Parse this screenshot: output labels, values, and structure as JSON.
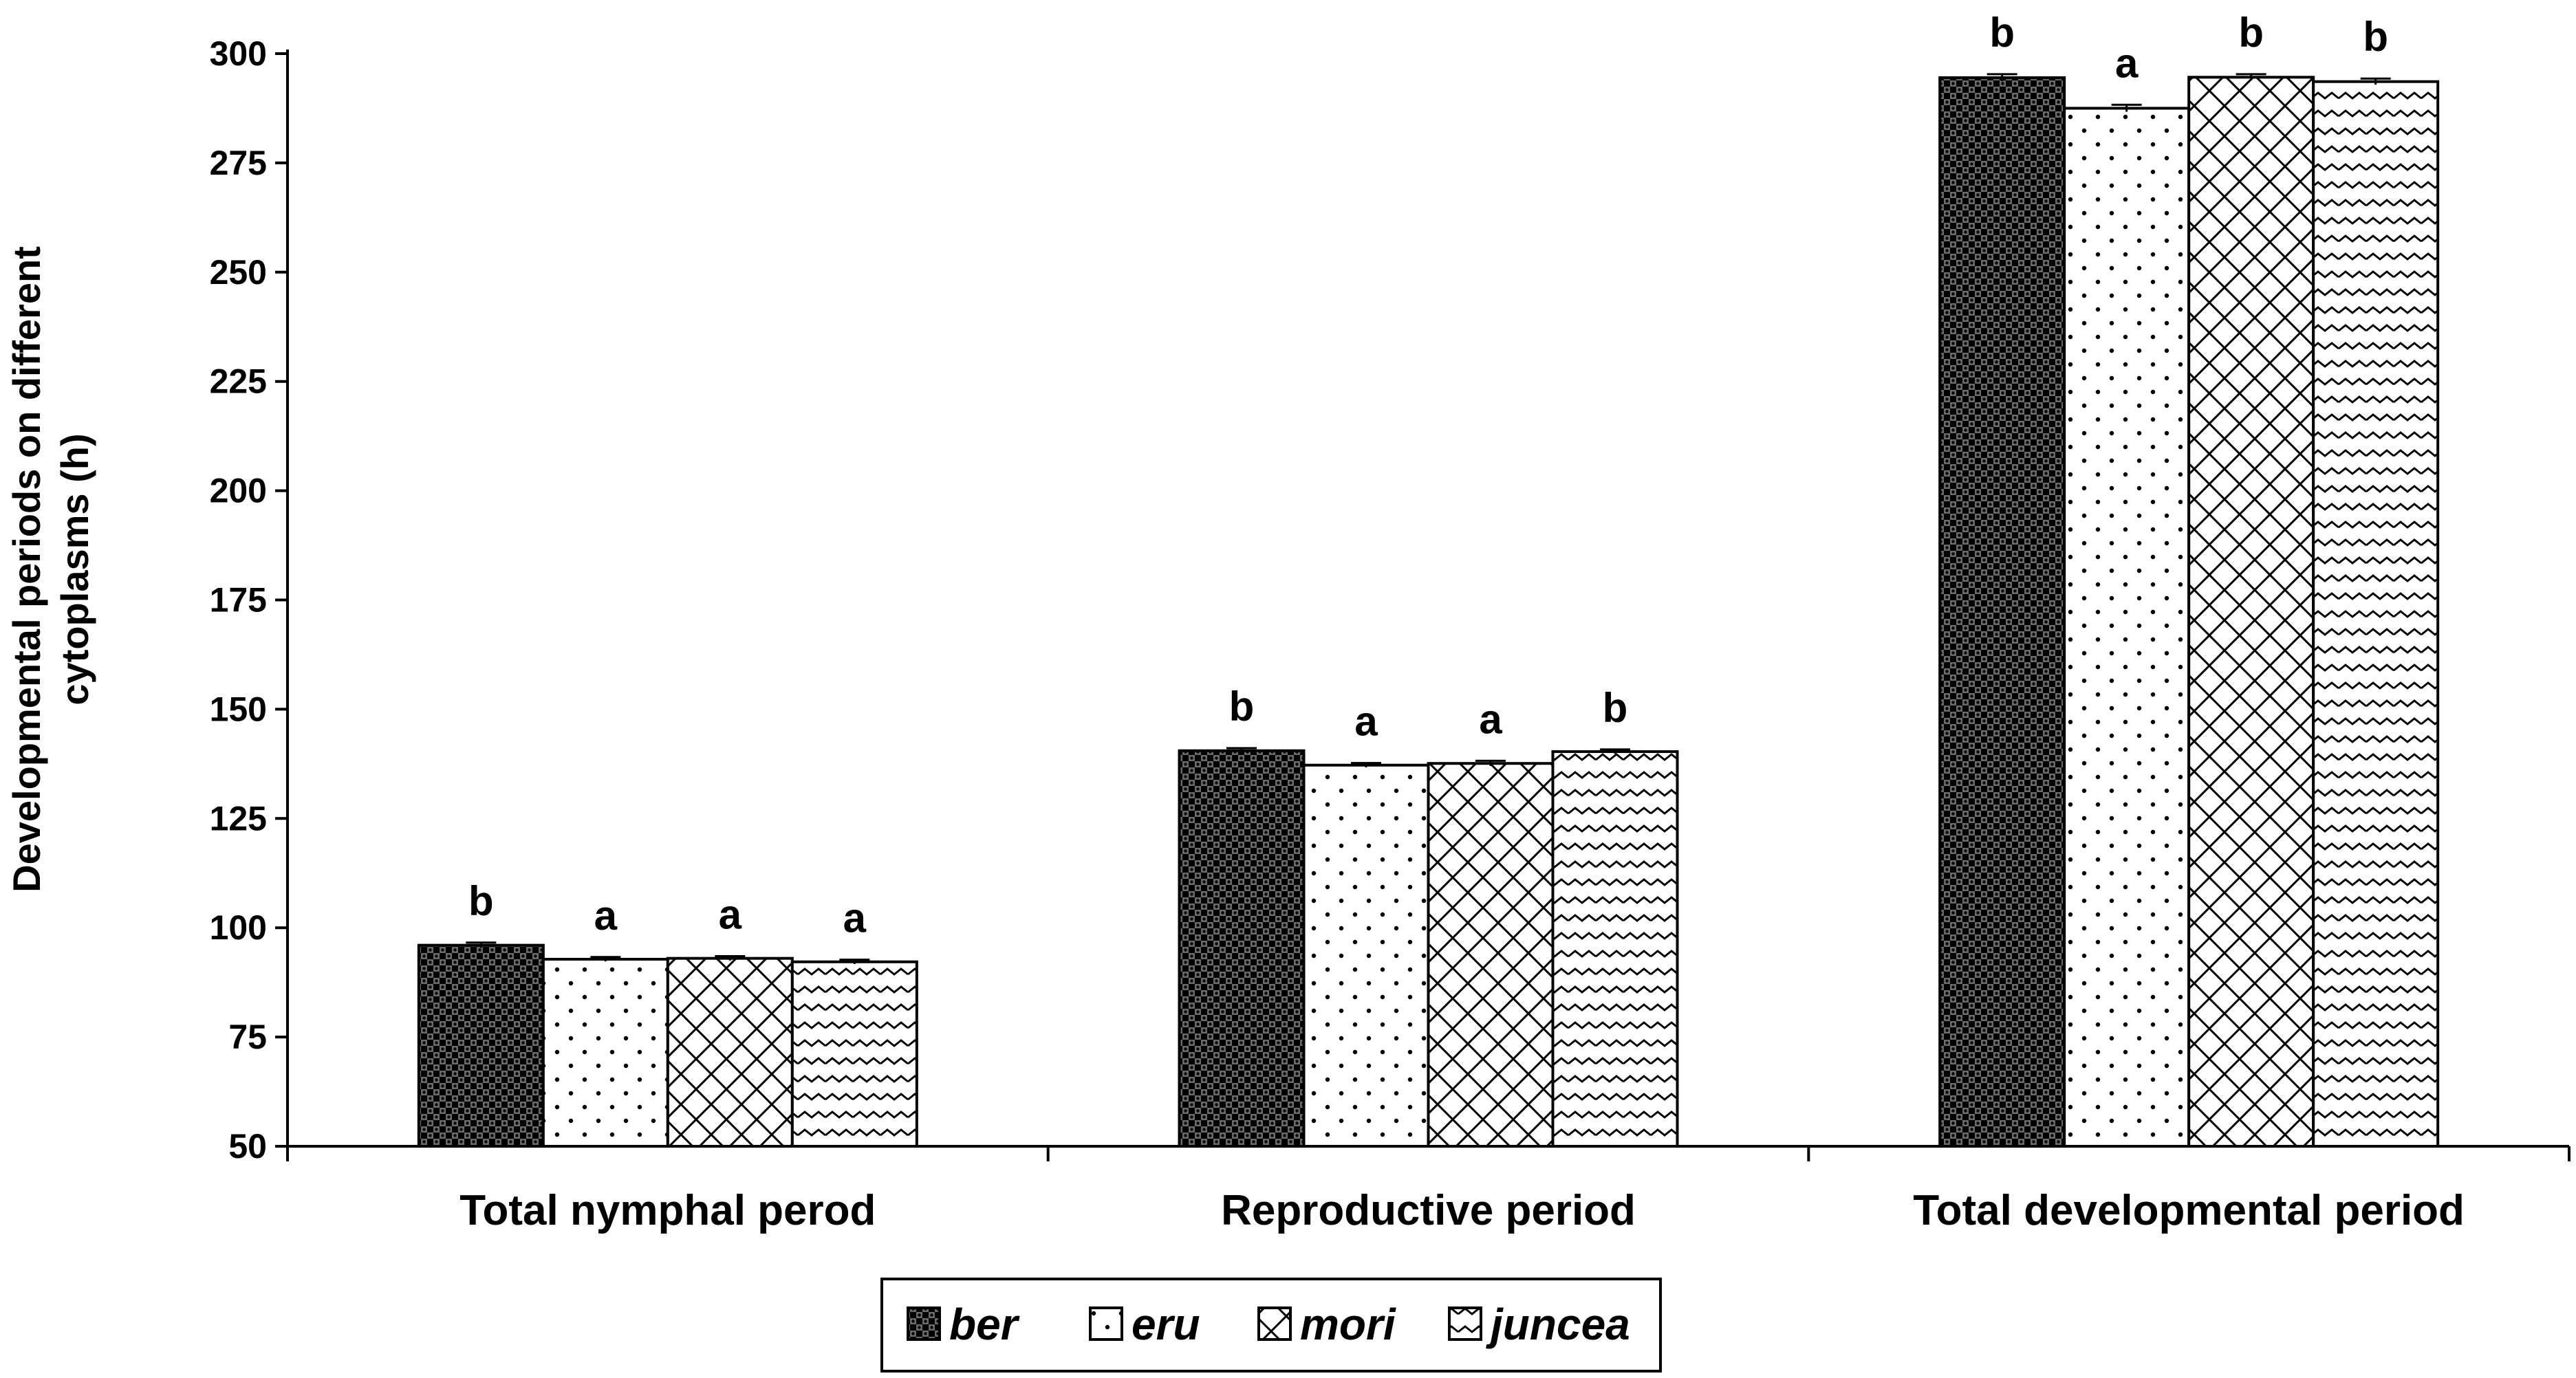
{
  "chart_data": {
    "type": "bar",
    "title": "",
    "xlabel": "",
    "ylabel_lines": [
      "Developmental periods on different",
      "cytoplasms (h)"
    ],
    "ylim": [
      50,
      300
    ],
    "yticks": [
      50,
      75,
      100,
      125,
      150,
      175,
      200,
      225,
      250,
      275,
      300
    ],
    "categories": [
      "Total nymphal perod",
      "Reproductive period",
      "Total developmental period"
    ],
    "series": [
      {
        "name": "ber",
        "pattern": "checker",
        "values": [
          96,
          140.5,
          294.5
        ],
        "errors": [
          0.6,
          0.6,
          0.8
        ],
        "letters": [
          "b",
          "b",
          "b"
        ]
      },
      {
        "name": "eru",
        "pattern": "dots",
        "values": [
          92.8,
          137.2,
          287.5
        ],
        "errors": [
          0.5,
          0.5,
          0.8
        ],
        "letters": [
          "a",
          "a",
          "a"
        ]
      },
      {
        "name": "mori",
        "pattern": "crosshatch",
        "values": [
          93,
          137.6,
          294.6
        ],
        "errors": [
          0.5,
          0.6,
          0.7
        ],
        "letters": [
          "a",
          "a",
          "b"
        ]
      },
      {
        "name": "juncea",
        "pattern": "zigzag",
        "values": [
          92.2,
          140.3,
          293.6
        ],
        "errors": [
          0.5,
          0.5,
          0.7
        ],
        "letters": [
          "a",
          "b",
          "b"
        ]
      }
    ],
    "legend_position": "bottom-center",
    "colors": {
      "bar_stroke": "#000000",
      "background": "#ffffff",
      "ink": "#000000"
    }
  }
}
